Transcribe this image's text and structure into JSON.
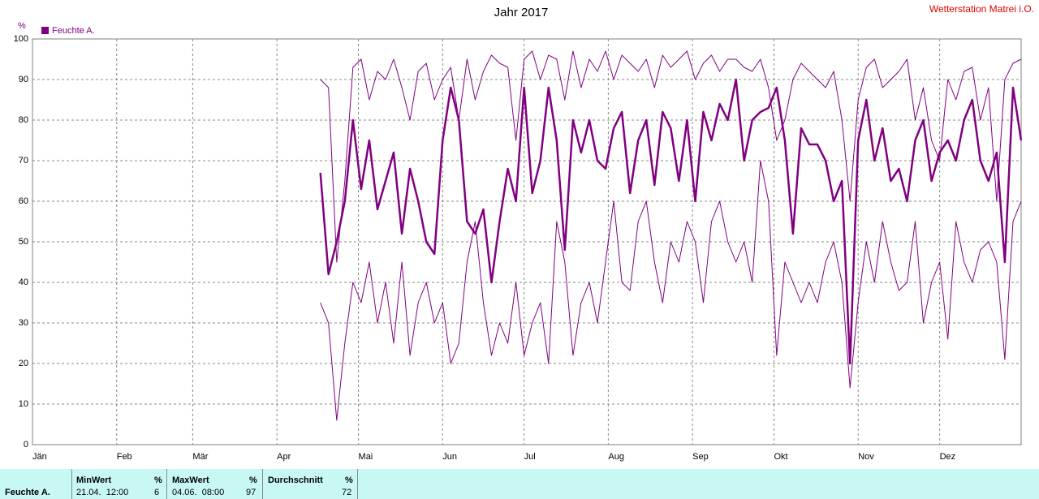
{
  "chart_data": {
    "type": "line",
    "title": "Jahr 2017",
    "station": "Wetterstation Matrei i.O.",
    "ylabel": "%",
    "xlim": [
      1,
      365
    ],
    "ylim": [
      0,
      100
    ],
    "yticks": [
      0,
      10,
      20,
      30,
      40,
      50,
      60,
      70,
      80,
      90,
      100
    ],
    "xticks": [
      {
        "value": 1,
        "label": "Jän"
      },
      {
        "value": 32,
        "label": "Feb"
      },
      {
        "value": 60,
        "label": "Mär"
      },
      {
        "value": 91,
        "label": "Apr"
      },
      {
        "value": 121,
        "label": "Mai"
      },
      {
        "value": 152,
        "label": "Jun"
      },
      {
        "value": 182,
        "label": "Jul"
      },
      {
        "value": 213,
        "label": "Aug"
      },
      {
        "value": 244,
        "label": "Sep"
      },
      {
        "value": 274,
        "label": "Okt"
      },
      {
        "value": 305,
        "label": "Nov"
      },
      {
        "value": 335,
        "label": "Dez"
      }
    ],
    "grid": true,
    "legend": "upper left",
    "x": [
      107,
      110,
      113,
      116,
      119,
      122,
      125,
      128,
      131,
      134,
      137,
      140,
      143,
      146,
      149,
      152,
      155,
      158,
      161,
      164,
      167,
      170,
      173,
      176,
      179,
      182,
      185,
      188,
      191,
      194,
      197,
      200,
      203,
      206,
      209,
      212,
      215,
      218,
      221,
      224,
      227,
      230,
      233,
      236,
      239,
      242,
      245,
      248,
      251,
      254,
      257,
      260,
      263,
      266,
      269,
      272,
      275,
      278,
      281,
      284,
      287,
      290,
      293,
      296,
      299,
      302,
      305,
      308,
      311,
      314,
      317,
      320,
      323,
      326,
      329,
      332,
      335,
      338,
      341,
      344,
      347,
      350,
      353,
      356,
      359,
      362,
      365
    ],
    "series": [
      {
        "color": "#800080",
        "width": 1,
        "values": [
          90,
          88,
          45,
          65,
          93,
          95,
          85,
          92,
          90,
          95,
          88,
          80,
          92,
          94,
          85,
          90,
          93,
          80,
          95,
          85,
          92,
          96,
          94,
          93,
          75,
          95,
          97,
          90,
          96,
          95,
          85,
          97,
          88,
          95,
          92,
          97,
          90,
          96,
          94,
          92,
          95,
          88,
          96,
          93,
          95,
          97,
          90,
          94,
          96,
          92,
          95,
          95,
          93,
          92,
          95,
          88,
          75,
          80,
          90,
          94,
          92,
          90,
          88,
          92,
          80,
          60,
          85,
          93,
          95,
          88,
          90,
          92,
          95,
          80,
          88,
          75,
          70,
          90,
          85,
          92,
          93,
          80,
          88,
          60,
          90,
          94,
          95
        ]
      },
      {
        "name": "Feuchte A.",
        "color": "#800080",
        "width": 2.5,
        "values": [
          67,
          42,
          50,
          60,
          80,
          63,
          75,
          58,
          65,
          72,
          52,
          68,
          60,
          50,
          47,
          75,
          88,
          80,
          55,
          52,
          58,
          40,
          55,
          68,
          60,
          88,
          62,
          70,
          88,
          75,
          48,
          80,
          72,
          80,
          70,
          68,
          78,
          82,
          62,
          75,
          80,
          64,
          82,
          78,
          65,
          80,
          60,
          82,
          75,
          84,
          80,
          90,
          70,
          80,
          82,
          83,
          88,
          75,
          52,
          78,
          74,
          74,
          70,
          60,
          65,
          20,
          75,
          85,
          70,
          78,
          65,
          68,
          60,
          75,
          80,
          65,
          72,
          75,
          70,
          80,
          85,
          70,
          65,
          72,
          45,
          88,
          75
        ]
      },
      {
        "color": "#800080",
        "width": 1,
        "values": [
          35,
          30,
          6,
          25,
          40,
          35,
          45,
          30,
          40,
          25,
          45,
          22,
          35,
          40,
          30,
          35,
          20,
          25,
          45,
          55,
          35,
          22,
          30,
          25,
          40,
          22,
          30,
          35,
          20,
          55,
          45,
          22,
          35,
          40,
          30,
          45,
          60,
          40,
          38,
          55,
          60,
          45,
          35,
          50,
          45,
          55,
          50,
          35,
          55,
          60,
          50,
          45,
          50,
          40,
          70,
          60,
          22,
          45,
          40,
          35,
          40,
          35,
          45,
          50,
          40,
          14,
          35,
          50,
          40,
          55,
          45,
          38,
          40,
          55,
          30,
          40,
          45,
          26,
          55,
          45,
          40,
          48,
          50,
          45,
          21,
          55,
          60
        ]
      }
    ]
  },
  "stats": {
    "row_label": "Feuchte A.",
    "min_label": "MinWert",
    "min_unit": "%",
    "min_time": "21.04.  12:00",
    "min_value": "6",
    "max_label": "MaxWert",
    "max_unit": "%",
    "max_time": "04.06.  08:00",
    "max_value": "97",
    "avg_label": "Durchschnitt",
    "avg_unit": "%",
    "avg_value": "72"
  }
}
